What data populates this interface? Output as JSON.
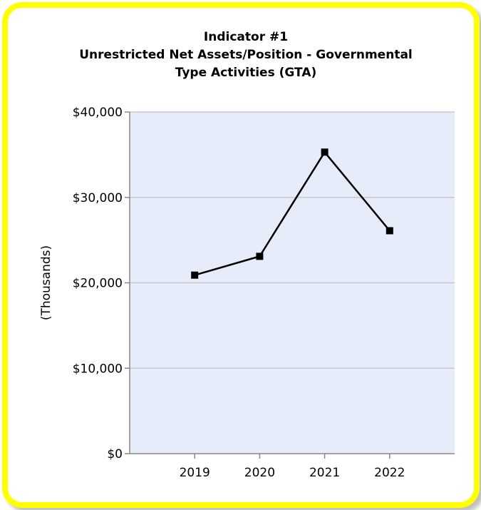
{
  "chart_data": {
    "type": "line",
    "title_lines": [
      "Indicator #1",
      "Unrestricted Net Assets/Position - Governmental",
      "Type Activities (GTA)"
    ],
    "xlabel": "",
    "ylabel": "(Thousands)",
    "categories": [
      "2019",
      "2020",
      "2021",
      "2022"
    ],
    "series": [
      {
        "values": [
          20900,
          23100,
          35300,
          26100
        ]
      }
    ],
    "ylim": [
      0,
      40000
    ],
    "yticks": [
      0,
      10000,
      20000,
      30000,
      40000
    ],
    "ytick_labels": [
      "$0",
      "$10,000",
      "$20,000",
      "$30,000",
      "$40,000"
    ],
    "grid": true,
    "colors": {
      "plot_background": "#e6ecf9",
      "gridline": "#c8c8c8",
      "line": "#000000",
      "border": "#ffff00"
    }
  }
}
